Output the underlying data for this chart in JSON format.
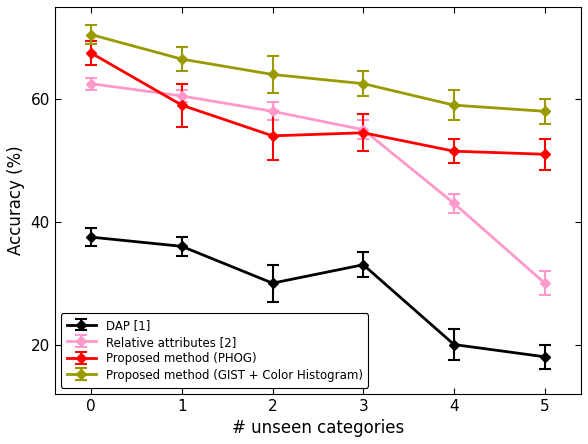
{
  "x": [
    0,
    1,
    2,
    3,
    4,
    5
  ],
  "dap": [
    37.5,
    36.0,
    30.0,
    33.0,
    20.0,
    18.0
  ],
  "dap_err": [
    1.5,
    1.5,
    3.0,
    2.0,
    2.5,
    2.0
  ],
  "rel_attr": [
    62.5,
    60.5,
    58.0,
    55.0,
    43.0,
    30.0
  ],
  "rel_attr_err": [
    1.0,
    1.0,
    1.5,
    1.5,
    1.5,
    2.0
  ],
  "phog": [
    67.5,
    59.0,
    54.0,
    54.5,
    51.5,
    51.0
  ],
  "phog_err": [
    2.0,
    3.5,
    4.0,
    3.0,
    2.0,
    2.5
  ],
  "gist": [
    70.5,
    66.5,
    64.0,
    62.5,
    59.0,
    58.0
  ],
  "gist_err": [
    1.5,
    2.0,
    3.0,
    2.0,
    2.5,
    2.0
  ],
  "dap_color": "#000000",
  "rel_attr_color": "#ff99cc",
  "phog_color": "#ff0000",
  "gist_color": "#999900",
  "xlabel": "# unseen categories",
  "ylabel": "Accuracy (%)",
  "ylim": [
    12,
    75
  ],
  "yticks": [
    20,
    40,
    60
  ],
  "xticks": [
    0,
    1,
    2,
    3,
    4,
    5
  ],
  "legend_labels": [
    "DAP [1]",
    "Relative attributes [2]",
    "Proposed method (PHOG)",
    "Proposed method (GIST + Color Histogram)"
  ]
}
